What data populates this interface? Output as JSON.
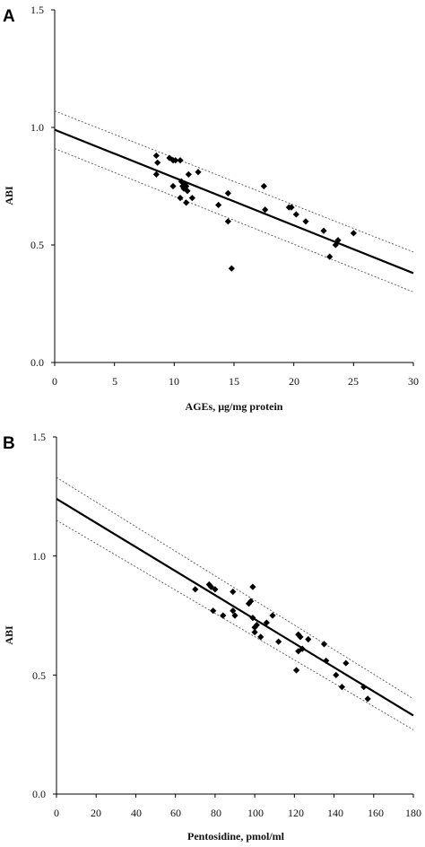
{
  "chart_data": [
    {
      "type": "scatter",
      "panel_label": "A",
      "xlabel": "AGEs, μg/mg protein",
      "ylabel": "ABI",
      "xlim": [
        0,
        30
      ],
      "ylim": [
        0,
        1.5
      ],
      "xticks": [
        "0",
        "5",
        "10",
        "15",
        "20",
        "25",
        "30"
      ],
      "yticks": [
        "0.0",
        "0.5",
        "1.0",
        "1.5"
      ],
      "grid": false,
      "series": [
        {
          "x": [
            8.5,
            8.6,
            8.5,
            9.6,
            9.9,
            10.1,
            9.9,
            10.5,
            10.6,
            10.7,
            10.8,
            10.9,
            11.0,
            11.1,
            11.2,
            11.5,
            10.5,
            11.0,
            12.0,
            13.7,
            14.5,
            14.5,
            14.8,
            17.5,
            17.6,
            19.6,
            19.8,
            20.2,
            21.0,
            22.5,
            23.0,
            23.5,
            23.7,
            25.0
          ],
          "y": [
            0.88,
            0.85,
            0.8,
            0.87,
            0.86,
            0.86,
            0.75,
            0.86,
            0.77,
            0.75,
            0.74,
            0.76,
            0.75,
            0.73,
            0.8,
            0.7,
            0.7,
            0.68,
            0.81,
            0.67,
            0.72,
            0.6,
            0.4,
            0.75,
            0.65,
            0.66,
            0.66,
            0.63,
            0.6,
            0.56,
            0.45,
            0.5,
            0.52,
            0.55
          ]
        }
      ],
      "fit": {
        "y_at_xmin": 0.99,
        "y_at_xmax": 0.38
      },
      "ci_upper": {
        "y_at_xmin": 1.07,
        "y_at_xmax": 0.47
      },
      "ci_lower": {
        "y_at_xmin": 0.91,
        "y_at_xmax": 0.3
      }
    },
    {
      "type": "scatter",
      "panel_label": "B",
      "xlabel": "Pentosidine, pmol/ml",
      "ylabel": "ABI",
      "xlim": [
        0,
        180
      ],
      "ylim": [
        0,
        1.5
      ],
      "xticks": [
        "0",
        "20",
        "40",
        "60",
        "80",
        "100",
        "120",
        "140",
        "160",
        "180"
      ],
      "yticks": [
        "0.0",
        "0.5",
        "1.0",
        "1.5"
      ],
      "grid": false,
      "series": [
        {
          "x": [
            70,
            77,
            78,
            80,
            79,
            84,
            89,
            89,
            90,
            97,
            98,
            99,
            99,
            100,
            100,
            101,
            103,
            106,
            109,
            112,
            121,
            122,
            122,
            123,
            124,
            127,
            135,
            136,
            141,
            144,
            146,
            155,
            157
          ],
          "y": [
            0.86,
            0.88,
            0.87,
            0.86,
            0.77,
            0.75,
            0.85,
            0.77,
            0.75,
            0.8,
            0.81,
            0.87,
            0.74,
            0.7,
            0.68,
            0.71,
            0.66,
            0.72,
            0.75,
            0.64,
            0.52,
            0.67,
            0.6,
            0.66,
            0.61,
            0.65,
            0.63,
            0.56,
            0.5,
            0.45,
            0.55,
            0.45,
            0.4
          ]
        }
      ],
      "fit": {
        "y_at_xmin": 1.24,
        "y_at_xmax": 0.33
      },
      "ci_upper": {
        "y_at_xmin": 1.33,
        "y_at_xmax": 0.4
      },
      "ci_lower": {
        "y_at_xmin": 1.15,
        "y_at_xmax": 0.27
      }
    }
  ]
}
